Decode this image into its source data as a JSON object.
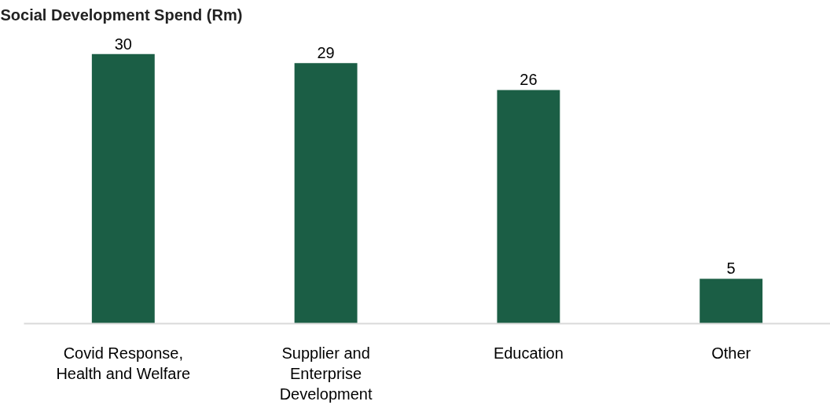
{
  "chart_data": {
    "type": "bar",
    "title": "Social Development Spend (Rm)",
    "categories": [
      "Covid Response, Health and Welfare",
      "Supplier and Enterprise Development",
      "Education",
      "Other"
    ],
    "values": [
      30,
      29,
      26,
      5
    ],
    "color": "#1b5e45",
    "data_labels": true,
    "grid": false
  }
}
